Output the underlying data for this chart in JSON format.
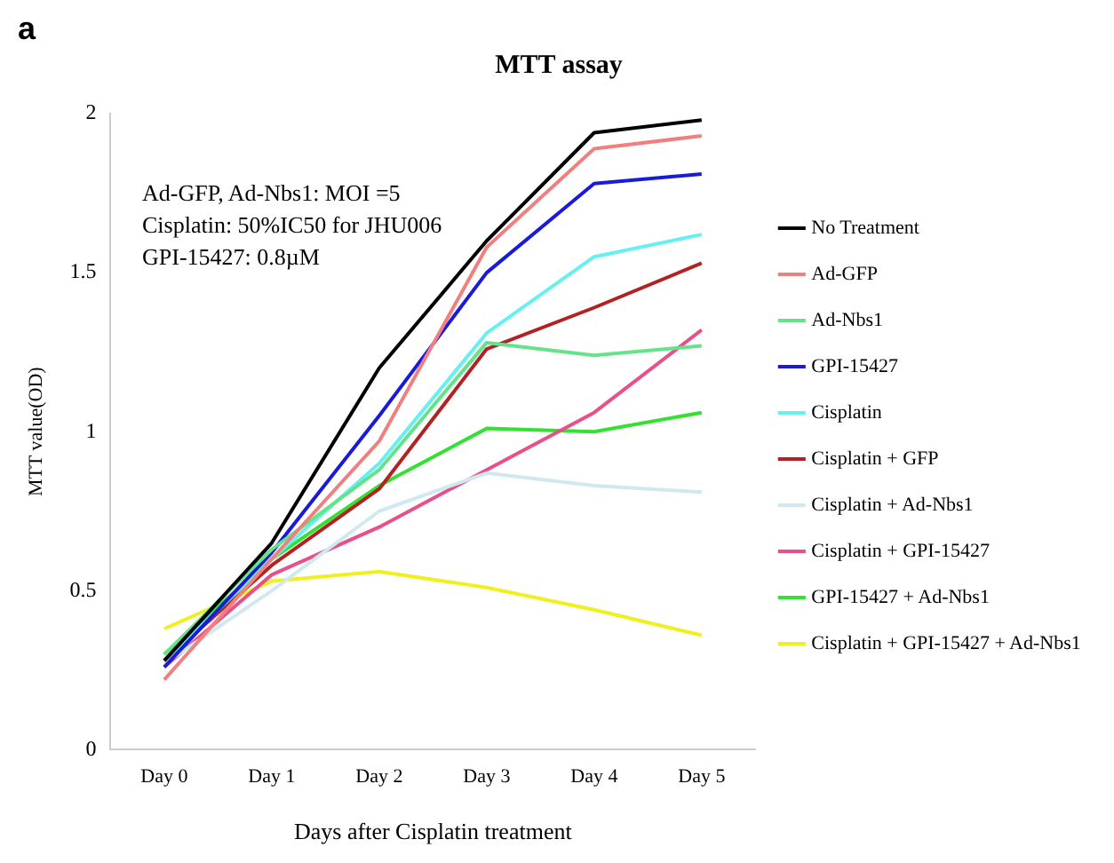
{
  "chart_data": {
    "type": "line",
    "title": "MTT assay",
    "xlabel": "Days after Cisplatin treatment",
    "ylabel": "MTT value(OD)",
    "annotations": [
      "a",
      "Ad-GFP, Ad-Nbs1:  MOI =5",
      "Cisplatin:  50%IC50 for JHU006",
      "GPI-15427: 0.8µM"
    ],
    "categories": [
      "Day 0",
      "Day 1",
      "Day 2",
      "Day 3",
      "Day 4",
      "Day 5"
    ],
    "series": [
      {
        "name": "No Treatment",
        "color": "#000000",
        "values": [
          0.28,
          0.65,
          1.2,
          1.6,
          1.94,
          1.98
        ]
      },
      {
        "name": "Ad-GFP",
        "color": "#f08080",
        "values": [
          0.22,
          0.6,
          0.97,
          1.58,
          1.89,
          1.93
        ]
      },
      {
        "name": "Ad-Nbs1",
        "color": "#66e38a",
        "values": [
          0.3,
          0.63,
          0.88,
          1.28,
          1.24,
          1.27
        ]
      },
      {
        "name": "GPI-15427",
        "color": "#1a1ad9",
        "values": [
          0.26,
          0.62,
          1.05,
          1.5,
          1.78,
          1.81
        ]
      },
      {
        "name": "Cisplatin",
        "color": "#66f0f0",
        "values": [
          0.28,
          0.6,
          0.9,
          1.31,
          1.55,
          1.62
        ]
      },
      {
        "name": "Cisplatin + GFP",
        "color": "#b22222",
        "values": [
          0.28,
          0.58,
          0.82,
          1.26,
          1.39,
          1.53
        ]
      },
      {
        "name": "Cisplatin + Ad-Nbs1",
        "color": "#d0e8f0",
        "values": [
          0.27,
          0.5,
          0.75,
          0.87,
          0.83,
          0.81
        ]
      },
      {
        "name": "Cisplatin + GPI-15427",
        "color": "#e8508a",
        "values": [
          0.26,
          0.55,
          0.7,
          0.88,
          1.06,
          1.32
        ]
      },
      {
        "name": "GPI-15427 + Ad-Nbs1",
        "color": "#33e033",
        "values": [
          0.3,
          0.6,
          0.83,
          1.01,
          1.0,
          1.06
        ]
      },
      {
        "name": "Cisplatin + GPI-15427 + Ad-Nbs1",
        "color": "#f0f020",
        "values": [
          0.38,
          0.53,
          0.56,
          0.51,
          0.44,
          0.36
        ]
      }
    ],
    "ylim": [
      0,
      2
    ],
    "yticks": [
      0,
      0.5,
      1,
      1.5,
      2
    ],
    "grid": false,
    "legend": "right",
    "marker": "none",
    "line_style": "solid"
  }
}
